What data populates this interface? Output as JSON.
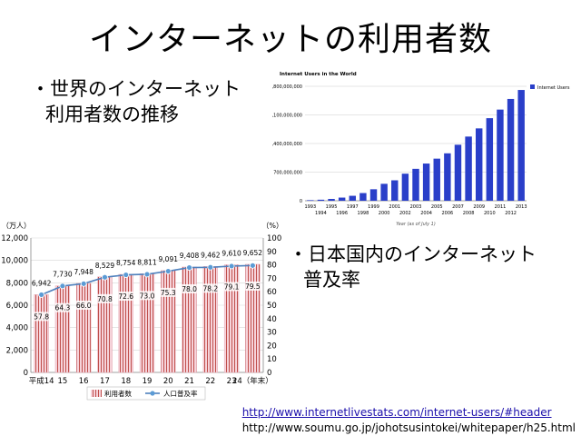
{
  "slide": {
    "title": "インターネットの利用者数",
    "bullet1": [
      "・世界のインターネット",
      "利用者数の推移"
    ],
    "bullet2": [
      "・日本国内のインターネット",
      "普及率"
    ],
    "links": [
      "http://www.internetlivestats.com/internet-users/#header",
      "http://www.soumu.go.jp/johotsusintokei/whitepaper/h25.html"
    ]
  },
  "chart_data": [
    {
      "type": "bar",
      "title": "Internet Users in the World",
      "xlabel": "Year (as of July 1)",
      "ylabel": "",
      "ylim": [
        0,
        2800000000
      ],
      "yticks": [
        "0",
        "700,000,000",
        "1,400,000,000",
        "2,100,000,000",
        "2,800,000,000"
      ],
      "yticks_values": [
        0,
        700000000,
        1400000000,
        2100000000,
        2800000000
      ],
      "legend": "Internet Users",
      "legend_position": "top-right",
      "color": "#2a3fc9",
      "categories": [
        "1993",
        "1994",
        "1995",
        "1996",
        "1997",
        "1998",
        "1999",
        "2000",
        "2001",
        "2002",
        "2003",
        "2004",
        "2005",
        "2006",
        "2007",
        "2008",
        "2009",
        "2010",
        "2011",
        "2012",
        "2013"
      ],
      "values": [
        14000000,
        25000000,
        44000000,
        77000000,
        121000000,
        188000000,
        281000000,
        414000000,
        500000000,
        662000000,
        781000000,
        910000000,
        1030000000,
        1160000000,
        1370000000,
        1570000000,
        1770000000,
        2020000000,
        2230000000,
        2490000000,
        2710000000
      ]
    },
    {
      "type": "bar",
      "title": "",
      "ylabel_left": "（万人）",
      "ylabel_right": "（%）",
      "ylim": [
        0,
        12000
      ],
      "ylim_right": [
        0,
        100
      ],
      "yticks": [
        "0",
        "2,000",
        "4,000",
        "6,000",
        "8,000",
        "10,000",
        "12,000"
      ],
      "yticks_values": [
        0,
        2000,
        4000,
        6000,
        8000,
        10000,
        12000
      ],
      "yticks_right": [
        "0",
        "10",
        "20",
        "30",
        "40",
        "50",
        "60",
        "70",
        "80",
        "90",
        "100"
      ],
      "yticks_right_values": [
        0,
        10,
        20,
        30,
        40,
        50,
        60,
        70,
        80,
        90,
        100
      ],
      "categories": [
        "平成14",
        "15",
        "16",
        "17",
        "18",
        "19",
        "20",
        "21",
        "22",
        "23",
        "24（年末）"
      ],
      "series": [
        {
          "name": "利用者数",
          "type": "bar",
          "values": [
            6942,
            7730,
            7948,
            8529,
            8754,
            8811,
            9091,
            9408,
            9462,
            9610,
            9652
          ],
          "labels": [
            "6,942",
            "7,730",
            "7,948",
            "8,529",
            "8,754",
            "8,811",
            "9,091",
            "9,408",
            "9,462",
            "9,610",
            "9,652"
          ]
        },
        {
          "name": "人口普及率",
          "type": "line",
          "values": [
            57.8,
            64.3,
            66.0,
            70.8,
            72.6,
            73.0,
            75.3,
            78.0,
            78.2,
            79.1,
            79.5
          ],
          "labels": [
            "57.8",
            "64.3",
            "66.0",
            "70.8",
            "72.6",
            "73.0",
            "75.3",
            "78.0",
            "78.2",
            "79.1",
            "79.5"
          ]
        }
      ],
      "colors": {
        "bar_fill": "#f3c4cf",
        "bar_stripe": "#c0504d",
        "line": "#4f81bd",
        "marker": "#5b9bd5"
      }
    }
  ]
}
